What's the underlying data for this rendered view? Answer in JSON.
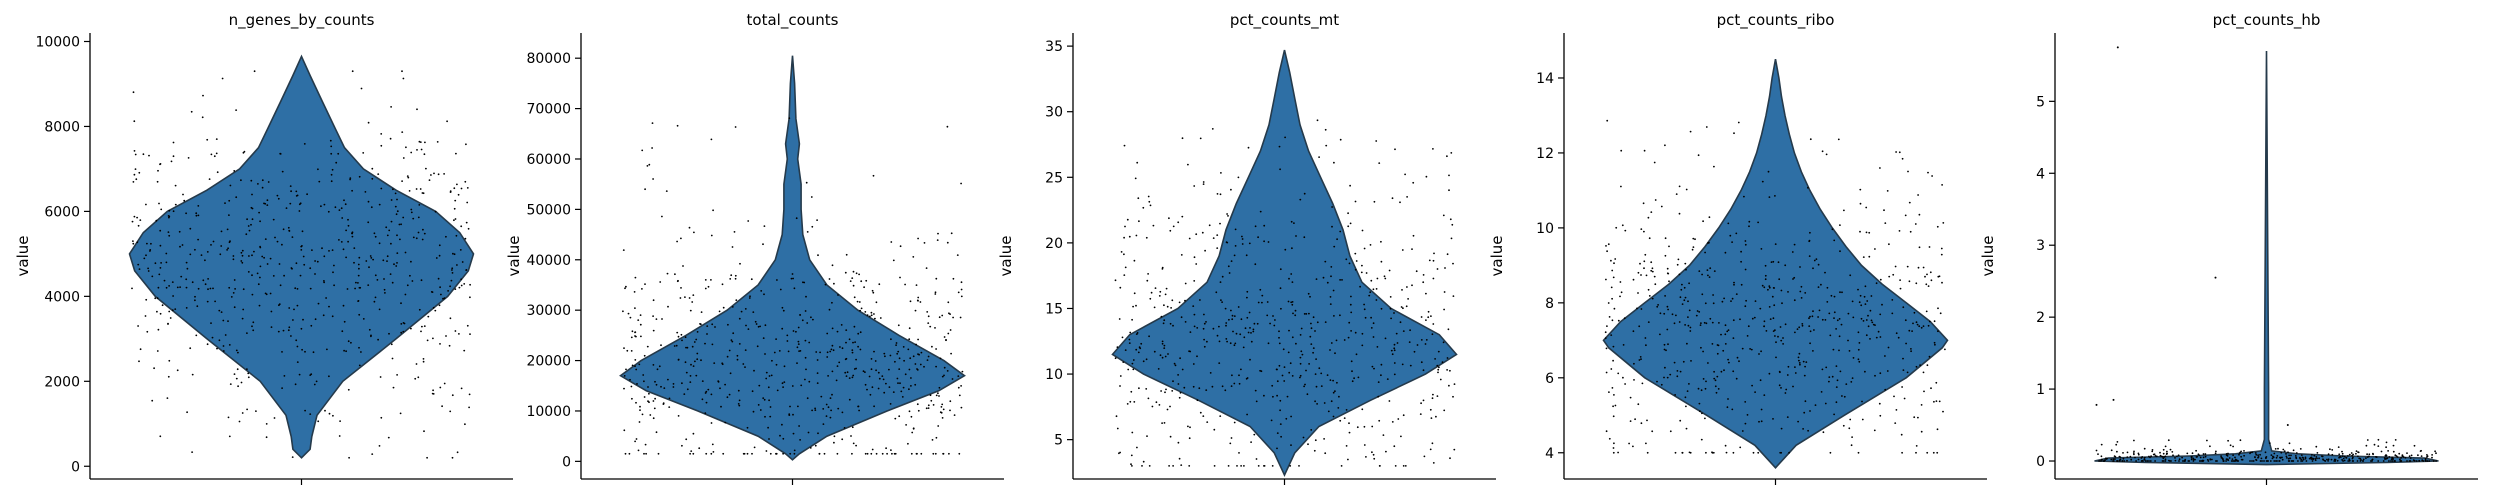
{
  "chart_data": [
    {
      "type": "violin",
      "title": "n_genes_by_counts",
      "ylabel": "value",
      "ylim": [
        -300,
        10200
      ],
      "yticks": [
        0,
        2000,
        4000,
        6000,
        8000,
        10000
      ],
      "ytick_labels": [
        "0",
        "2000",
        "4000",
        "6000",
        "8000",
        "10000"
      ],
      "color": "#2e6fa5",
      "scatter": {
        "min": 200,
        "max": 9300,
        "center": 4800,
        "spread": 1700,
        "count": 650
      },
      "density": [
        [
          200,
          0.0
        ],
        [
          400,
          0.05
        ],
        [
          700,
          0.06
        ],
        [
          1200,
          0.09
        ],
        [
          2000,
          0.24
        ],
        [
          3000,
          0.55
        ],
        [
          4000,
          0.85
        ],
        [
          4600,
          0.97
        ],
        [
          5000,
          1.0
        ],
        [
          5500,
          0.92
        ],
        [
          6000,
          0.78
        ],
        [
          6500,
          0.55
        ],
        [
          7000,
          0.36
        ],
        [
          7500,
          0.25
        ],
        [
          8000,
          0.19
        ],
        [
          8600,
          0.12
        ],
        [
          9200,
          0.05
        ],
        [
          9650,
          0.0
        ]
      ]
    },
    {
      "type": "violin",
      "title": "total_counts",
      "ylabel": "value",
      "ylim": [
        -3500,
        85000
      ],
      "yticks": [
        0,
        10000,
        20000,
        30000,
        40000,
        50000,
        60000,
        70000,
        80000
      ],
      "ytick_labels": [
        "0",
        "10000",
        "20000",
        "30000",
        "40000",
        "50000",
        "60000",
        "70000",
        "80000"
      ],
      "color": "#2e6fa5",
      "scatter": {
        "min": 1500,
        "max": 80000,
        "center": 18000,
        "spread": 11000,
        "count": 650
      },
      "density": [
        [
          300,
          0.0
        ],
        [
          1500,
          0.04
        ],
        [
          5000,
          0.2
        ],
        [
          10000,
          0.55
        ],
        [
          14000,
          0.85
        ],
        [
          17000,
          1.0
        ],
        [
          20000,
          0.88
        ],
        [
          25000,
          0.62
        ],
        [
          30000,
          0.38
        ],
        [
          35000,
          0.2
        ],
        [
          40000,
          0.1
        ],
        [
          45000,
          0.06
        ],
        [
          50000,
          0.05
        ],
        [
          55000,
          0.05
        ],
        [
          60000,
          0.03
        ],
        [
          63000,
          0.04
        ],
        [
          68000,
          0.02
        ],
        [
          75000,
          0.012
        ],
        [
          80500,
          0.0
        ]
      ]
    },
    {
      "type": "violin",
      "title": "pct_counts_mt",
      "ylabel": "value",
      "ylim": [
        2,
        36
      ],
      "yticks": [
        5,
        10,
        15,
        20,
        25,
        30,
        35
      ],
      "ytick_labels": [
        "5",
        "10",
        "15",
        "20",
        "25",
        "30",
        "35"
      ],
      "color": "#2e6fa5",
      "scatter": {
        "min": 3,
        "max": 34.5,
        "center": 13,
        "spread": 5.5,
        "count": 650
      },
      "density": [
        [
          2.3,
          0.0
        ],
        [
          4,
          0.06
        ],
        [
          6,
          0.2
        ],
        [
          8,
          0.5
        ],
        [
          10,
          0.82
        ],
        [
          11.5,
          1.0
        ],
        [
          13,
          0.9
        ],
        [
          15,
          0.62
        ],
        [
          17,
          0.45
        ],
        [
          19,
          0.38
        ],
        [
          21,
          0.34
        ],
        [
          23,
          0.28
        ],
        [
          25,
          0.21
        ],
        [
          27,
          0.14
        ],
        [
          29,
          0.09
        ],
        [
          31,
          0.06
        ],
        [
          33,
          0.03
        ],
        [
          34.7,
          0.0
        ]
      ]
    },
    {
      "type": "violin",
      "title": "pct_counts_ribo",
      "ylabel": "value",
      "ylim": [
        3.3,
        15.2
      ],
      "yticks": [
        4,
        6,
        8,
        10,
        12,
        14
      ],
      "ytick_labels": [
        "4",
        "6",
        "8",
        "10",
        "12",
        "14"
      ],
      "color": "#2e6fa5",
      "scatter": {
        "min": 4,
        "max": 14.5,
        "center": 7.3,
        "spread": 1.8,
        "count": 650
      },
      "density": [
        [
          3.6,
          0.0
        ],
        [
          4.2,
          0.12
        ],
        [
          5,
          0.4
        ],
        [
          6,
          0.76
        ],
        [
          6.8,
          0.97
        ],
        [
          7,
          1.0
        ],
        [
          7.5,
          0.9
        ],
        [
          8,
          0.76
        ],
        [
          8.5,
          0.62
        ],
        [
          9,
          0.5
        ],
        [
          9.5,
          0.41
        ],
        [
          10,
          0.33
        ],
        [
          10.5,
          0.26
        ],
        [
          11,
          0.2
        ],
        [
          11.5,
          0.15
        ],
        [
          12,
          0.11
        ],
        [
          12.5,
          0.08
        ],
        [
          13,
          0.055
        ],
        [
          13.5,
          0.035
        ],
        [
          14,
          0.02
        ],
        [
          14.5,
          0.0
        ]
      ]
    },
    {
      "type": "violin",
      "title": "pct_counts_hb",
      "ylabel": "value",
      "ylim": [
        -0.25,
        5.95
      ],
      "yticks": [
        0,
        1,
        2,
        3,
        4,
        5
      ],
      "ytick_labels": [
        "0",
        "1",
        "2",
        "3",
        "4",
        "5"
      ],
      "color": "#2e6fa5",
      "scatter": {
        "min": 0,
        "max": 0.35,
        "center": 0.03,
        "spread": 0.06,
        "count": 450,
        "outliers": [
          [
            -0.12,
            2.55
          ],
          [
            -0.35,
            5.75
          ],
          [
            -0.36,
            0.85
          ],
          [
            -0.4,
            0.78
          ],
          [
            0.05,
            0.5
          ]
        ]
      },
      "density": [
        [
          -0.05,
          0.0
        ],
        [
          -0.02,
          0.7
        ],
        [
          0.0,
          1.0
        ],
        [
          0.04,
          0.92
        ],
        [
          0.07,
          0.45
        ],
        [
          0.1,
          0.18
        ],
        [
          0.14,
          0.03
        ],
        [
          0.3,
          0.012
        ],
        [
          1,
          0.012
        ],
        [
          5.7,
          0.0
        ]
      ]
    }
  ]
}
